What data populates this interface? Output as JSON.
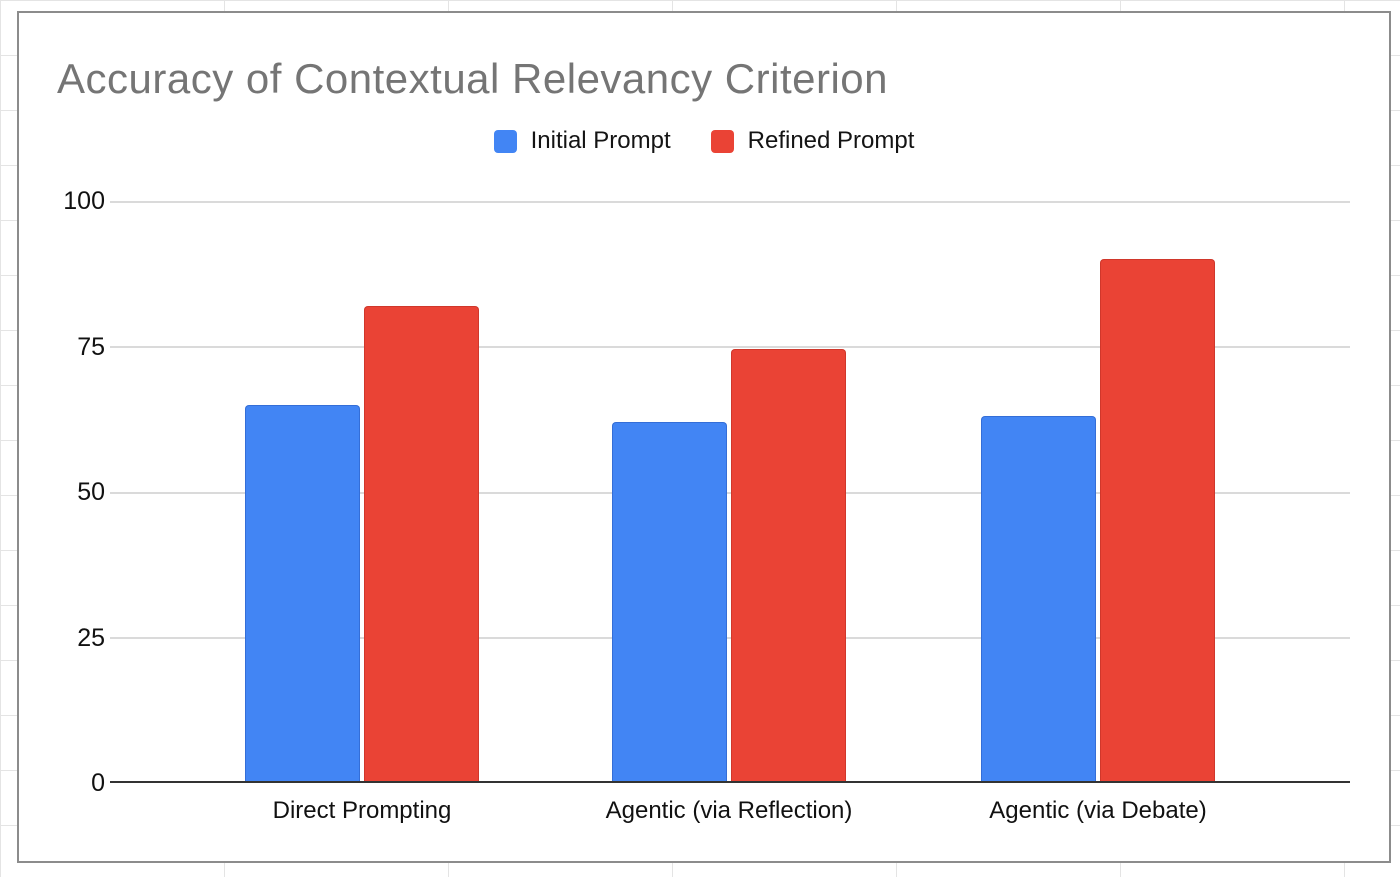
{
  "chart_data": {
    "type": "bar",
    "title": "Accuracy of Contextual Relevancy Criterion",
    "categories": [
      "Direct Prompting",
      "Agentic (via Reflection)",
      "Agentic (via Debate)"
    ],
    "series": [
      {
        "name": "Initial Prompt",
        "color": "#4285F4",
        "values": [
          65,
          62,
          63
        ]
      },
      {
        "name": "Refined Prompt",
        "color": "#EA4335",
        "values": [
          82,
          74.6,
          90
        ]
      }
    ],
    "xlabel": "",
    "ylabel": "",
    "y_ticks": [
      0,
      25,
      50,
      75,
      100
    ],
    "ylim": [
      0,
      100
    ],
    "grid": true,
    "legend_position": "top",
    "title_color": "#757575",
    "gridline_color": "#dadada",
    "axis_line_color": "#333333"
  }
}
